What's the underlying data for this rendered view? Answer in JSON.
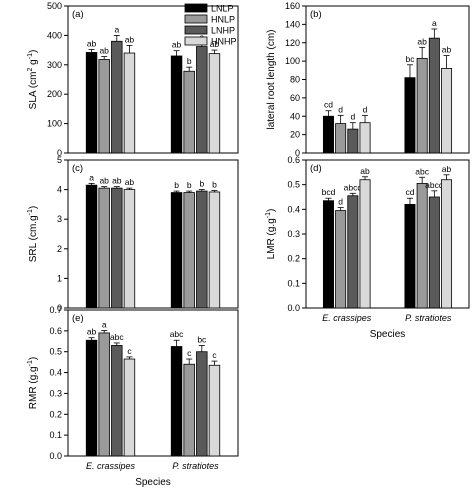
{
  "legend": [
    {
      "label": "LNLP",
      "color": "#000000"
    },
    {
      "label": "HNLP",
      "color": "#9a9a9a"
    },
    {
      "label": "LNHP",
      "color": "#5a5a5a"
    },
    {
      "label": "HNHP",
      "color": "#d9d9d9"
    }
  ],
  "chart_data": [
    {
      "panel": "(a)",
      "type": "bar",
      "ylabel_parts": [
        "SLA (cm",
        "2",
        " g",
        "-1",
        ")"
      ],
      "ylim": [
        0,
        500
      ],
      "yticks": [
        "0",
        "100",
        "200",
        "300",
        "400",
        "500"
      ],
      "categories": [
        "E. crassipes",
        "P. stratiotes"
      ],
      "show_categories": false,
      "series": [
        {
          "name": "LNLP",
          "values": [
            342,
            330
          ],
          "errors": [
            10,
            18
          ],
          "letters": [
            "ab",
            "ab"
          ]
        },
        {
          "name": "HNLP",
          "values": [
            318,
            278
          ],
          "errors": [
            10,
            14
          ],
          "letters": [
            "ab",
            "b"
          ]
        },
        {
          "name": "LNHP",
          "values": [
            380,
            362
          ],
          "errors": [
            20,
            12
          ],
          "letters": [
            "a",
            "a"
          ]
        },
        {
          "name": "HNHP",
          "values": [
            340,
            338
          ],
          "errors": [
            26,
            12
          ],
          "letters": [
            "ab",
            "ab"
          ]
        }
      ]
    },
    {
      "panel": "(b)",
      "type": "bar",
      "ylabel_parts": [
        "lateral root length (cm)"
      ],
      "ylim": [
        0,
        160
      ],
      "yticks": [
        "0",
        "20",
        "40",
        "60",
        "80",
        "100",
        "120",
        "140",
        "160"
      ],
      "categories": [
        "E. crassipes",
        "P. stratiotes"
      ],
      "show_categories": false,
      "series": [
        {
          "name": "LNLP",
          "values": [
            40,
            82
          ],
          "errors": [
            6,
            14
          ],
          "letters": [
            "cd",
            "bc"
          ]
        },
        {
          "name": "HNLP",
          "values": [
            32,
            103
          ],
          "errors": [
            9,
            12
          ],
          "letters": [
            "d",
            "ab"
          ]
        },
        {
          "name": "LNHP",
          "values": [
            26,
            125
          ],
          "errors": [
            7,
            10
          ],
          "letters": [
            "d",
            "a"
          ]
        },
        {
          "name": "HNHP",
          "values": [
            33,
            92
          ],
          "errors": [
            8,
            14
          ],
          "letters": [
            "d",
            "ab"
          ]
        }
      ]
    },
    {
      "panel": "(c)",
      "type": "bar",
      "ylabel_parts": [
        "SRL (cm.g",
        "-1",
        ")"
      ],
      "ylim": [
        0,
        5
      ],
      "yticks": [
        "0",
        "1",
        "2",
        "3",
        "4",
        "5"
      ],
      "categories": [
        "E. crassipes",
        "P. stratiotes"
      ],
      "show_categories": false,
      "series": [
        {
          "name": "LNLP",
          "values": [
            4.15,
            3.9
          ],
          "errors": [
            0.06,
            0.05
          ],
          "letters": [
            "a",
            "b"
          ]
        },
        {
          "name": "HNLP",
          "values": [
            4.05,
            3.9
          ],
          "errors": [
            0.05,
            0.05
          ],
          "letters": [
            "ab",
            "b"
          ]
        },
        {
          "name": "LNHP",
          "values": [
            4.05,
            3.95
          ],
          "errors": [
            0.05,
            0.05
          ],
          "letters": [
            "ab",
            "b"
          ]
        },
        {
          "name": "HNHP",
          "values": [
            4.0,
            3.92
          ],
          "errors": [
            0.05,
            0.05
          ],
          "letters": [
            "ab",
            "b"
          ]
        }
      ]
    },
    {
      "panel": "(d)",
      "type": "bar",
      "ylabel_parts": [
        "LMR (g.g",
        "-1",
        ")"
      ],
      "ylim": [
        0,
        0.6
      ],
      "yticks": [
        "0.0",
        "0.1",
        "0.2",
        "0.3",
        "0.4",
        "0.5",
        "0.6"
      ],
      "categories": [
        "E. crassipes",
        "P. stratiotes"
      ],
      "show_categories": true,
      "xlabel": "Species",
      "series": [
        {
          "name": "LNLP",
          "values": [
            0.435,
            0.42
          ],
          "errors": [
            0.01,
            0.025
          ],
          "letters": [
            "bcd",
            "cd"
          ]
        },
        {
          "name": "HNLP",
          "values": [
            0.395,
            0.505
          ],
          "errors": [
            0.012,
            0.025
          ],
          "letters": [
            "d",
            "abc"
          ]
        },
        {
          "name": "LNHP",
          "values": [
            0.455,
            0.45
          ],
          "errors": [
            0.01,
            0.025
          ],
          "letters": [
            "abcd",
            "abcd"
          ]
        },
        {
          "name": "HNHP",
          "values": [
            0.52,
            0.52
          ],
          "errors": [
            0.012,
            0.02
          ],
          "letters": [
            "ab",
            "ab"
          ]
        }
      ]
    },
    {
      "panel": "(e)",
      "type": "bar",
      "ylabel_parts": [
        "RMR (g.g",
        "-1",
        ")"
      ],
      "ylim": [
        0,
        0.7
      ],
      "yticks": [
        "0.0",
        "0.1",
        "0.2",
        "0.3",
        "0.4",
        "0.5",
        "0.6",
        "0.7"
      ],
      "categories": [
        "E. crassipes",
        "P. stratiotes"
      ],
      "show_categories": true,
      "xlabel": "Species",
      "series": [
        {
          "name": "LNLP",
          "values": [
            0.555,
            0.525
          ],
          "errors": [
            0.012,
            0.03
          ],
          "letters": [
            "ab",
            "abc"
          ]
        },
        {
          "name": "HNLP",
          "values": [
            0.59,
            0.44
          ],
          "errors": [
            0.012,
            0.025
          ],
          "letters": [
            "a",
            "c"
          ]
        },
        {
          "name": "LNHP",
          "values": [
            0.53,
            0.5
          ],
          "errors": [
            0.012,
            0.03
          ],
          "letters": [
            "abc",
            "bc"
          ]
        },
        {
          "name": "HNHP",
          "values": [
            0.465,
            0.435
          ],
          "errors": [
            0.01,
            0.02
          ],
          "letters": [
            "c",
            "c"
          ]
        }
      ]
    }
  ]
}
